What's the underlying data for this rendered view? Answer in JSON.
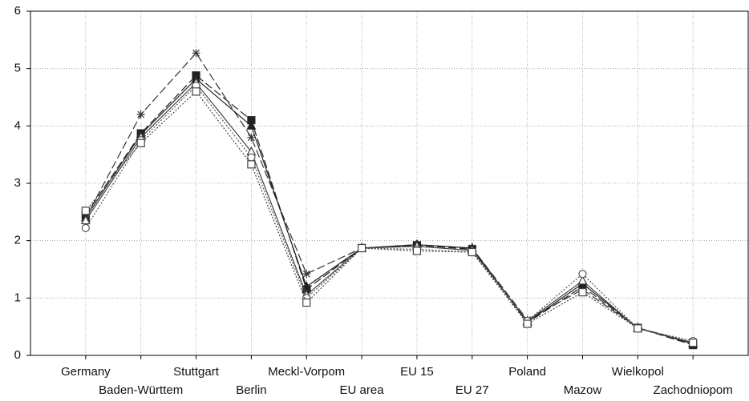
{
  "chart_data": {
    "type": "line",
    "categories": [
      "Germany",
      "Baden-Württem",
      "Stuttgart",
      "Berlin",
      "Meckl-Vorpom",
      "EU area",
      "EU 15",
      "EU 27",
      "Poland",
      "Mazow",
      "Wielkopol",
      "Zachodniopom"
    ],
    "series": [
      {
        "color": "#333333",
        "marker": "asterisk",
        "dash": "long",
        "values": [
          2.4,
          4.2,
          5.27,
          3.8,
          1.42,
          1.87,
          1.93,
          1.87,
          0.62,
          1.15,
          0.48,
          0.22
        ]
      },
      {
        "color": "#222222",
        "marker": "square-filled",
        "dash": "long",
        "values": [
          2.45,
          3.87,
          4.88,
          4.1,
          1.15,
          1.87,
          1.92,
          1.85,
          0.57,
          1.2,
          0.48,
          0.18
        ]
      },
      {
        "color": "#222222",
        "marker": "triangle-filled",
        "dash": "solid",
        "values": [
          2.4,
          3.85,
          4.82,
          4.0,
          1.2,
          1.87,
          1.93,
          1.87,
          0.58,
          1.25,
          0.48,
          0.2
        ]
      },
      {
        "color": "#444444",
        "marker": "triangle-open",
        "dash": "solid",
        "values": [
          2.35,
          3.8,
          4.75,
          3.55,
          1.05,
          1.87,
          1.9,
          1.83,
          0.6,
          1.3,
          0.47,
          0.22
        ]
      },
      {
        "color": "#555555",
        "marker": "circle-open",
        "dash": "dotted",
        "values": [
          2.22,
          3.75,
          4.7,
          3.45,
          1.0,
          1.87,
          1.85,
          1.8,
          0.6,
          1.42,
          0.47,
          0.25
        ]
      },
      {
        "color": "#444444",
        "marker": "square-open",
        "dash": "dotted",
        "values": [
          2.52,
          3.7,
          4.6,
          3.33,
          0.92,
          1.87,
          1.82,
          1.8,
          0.55,
          1.1,
          0.47,
          0.22
        ]
      }
    ],
    "ylim": [
      0,
      6
    ],
    "yticks": [
      0,
      1,
      2,
      3,
      4,
      5,
      6
    ],
    "grid": true
  }
}
